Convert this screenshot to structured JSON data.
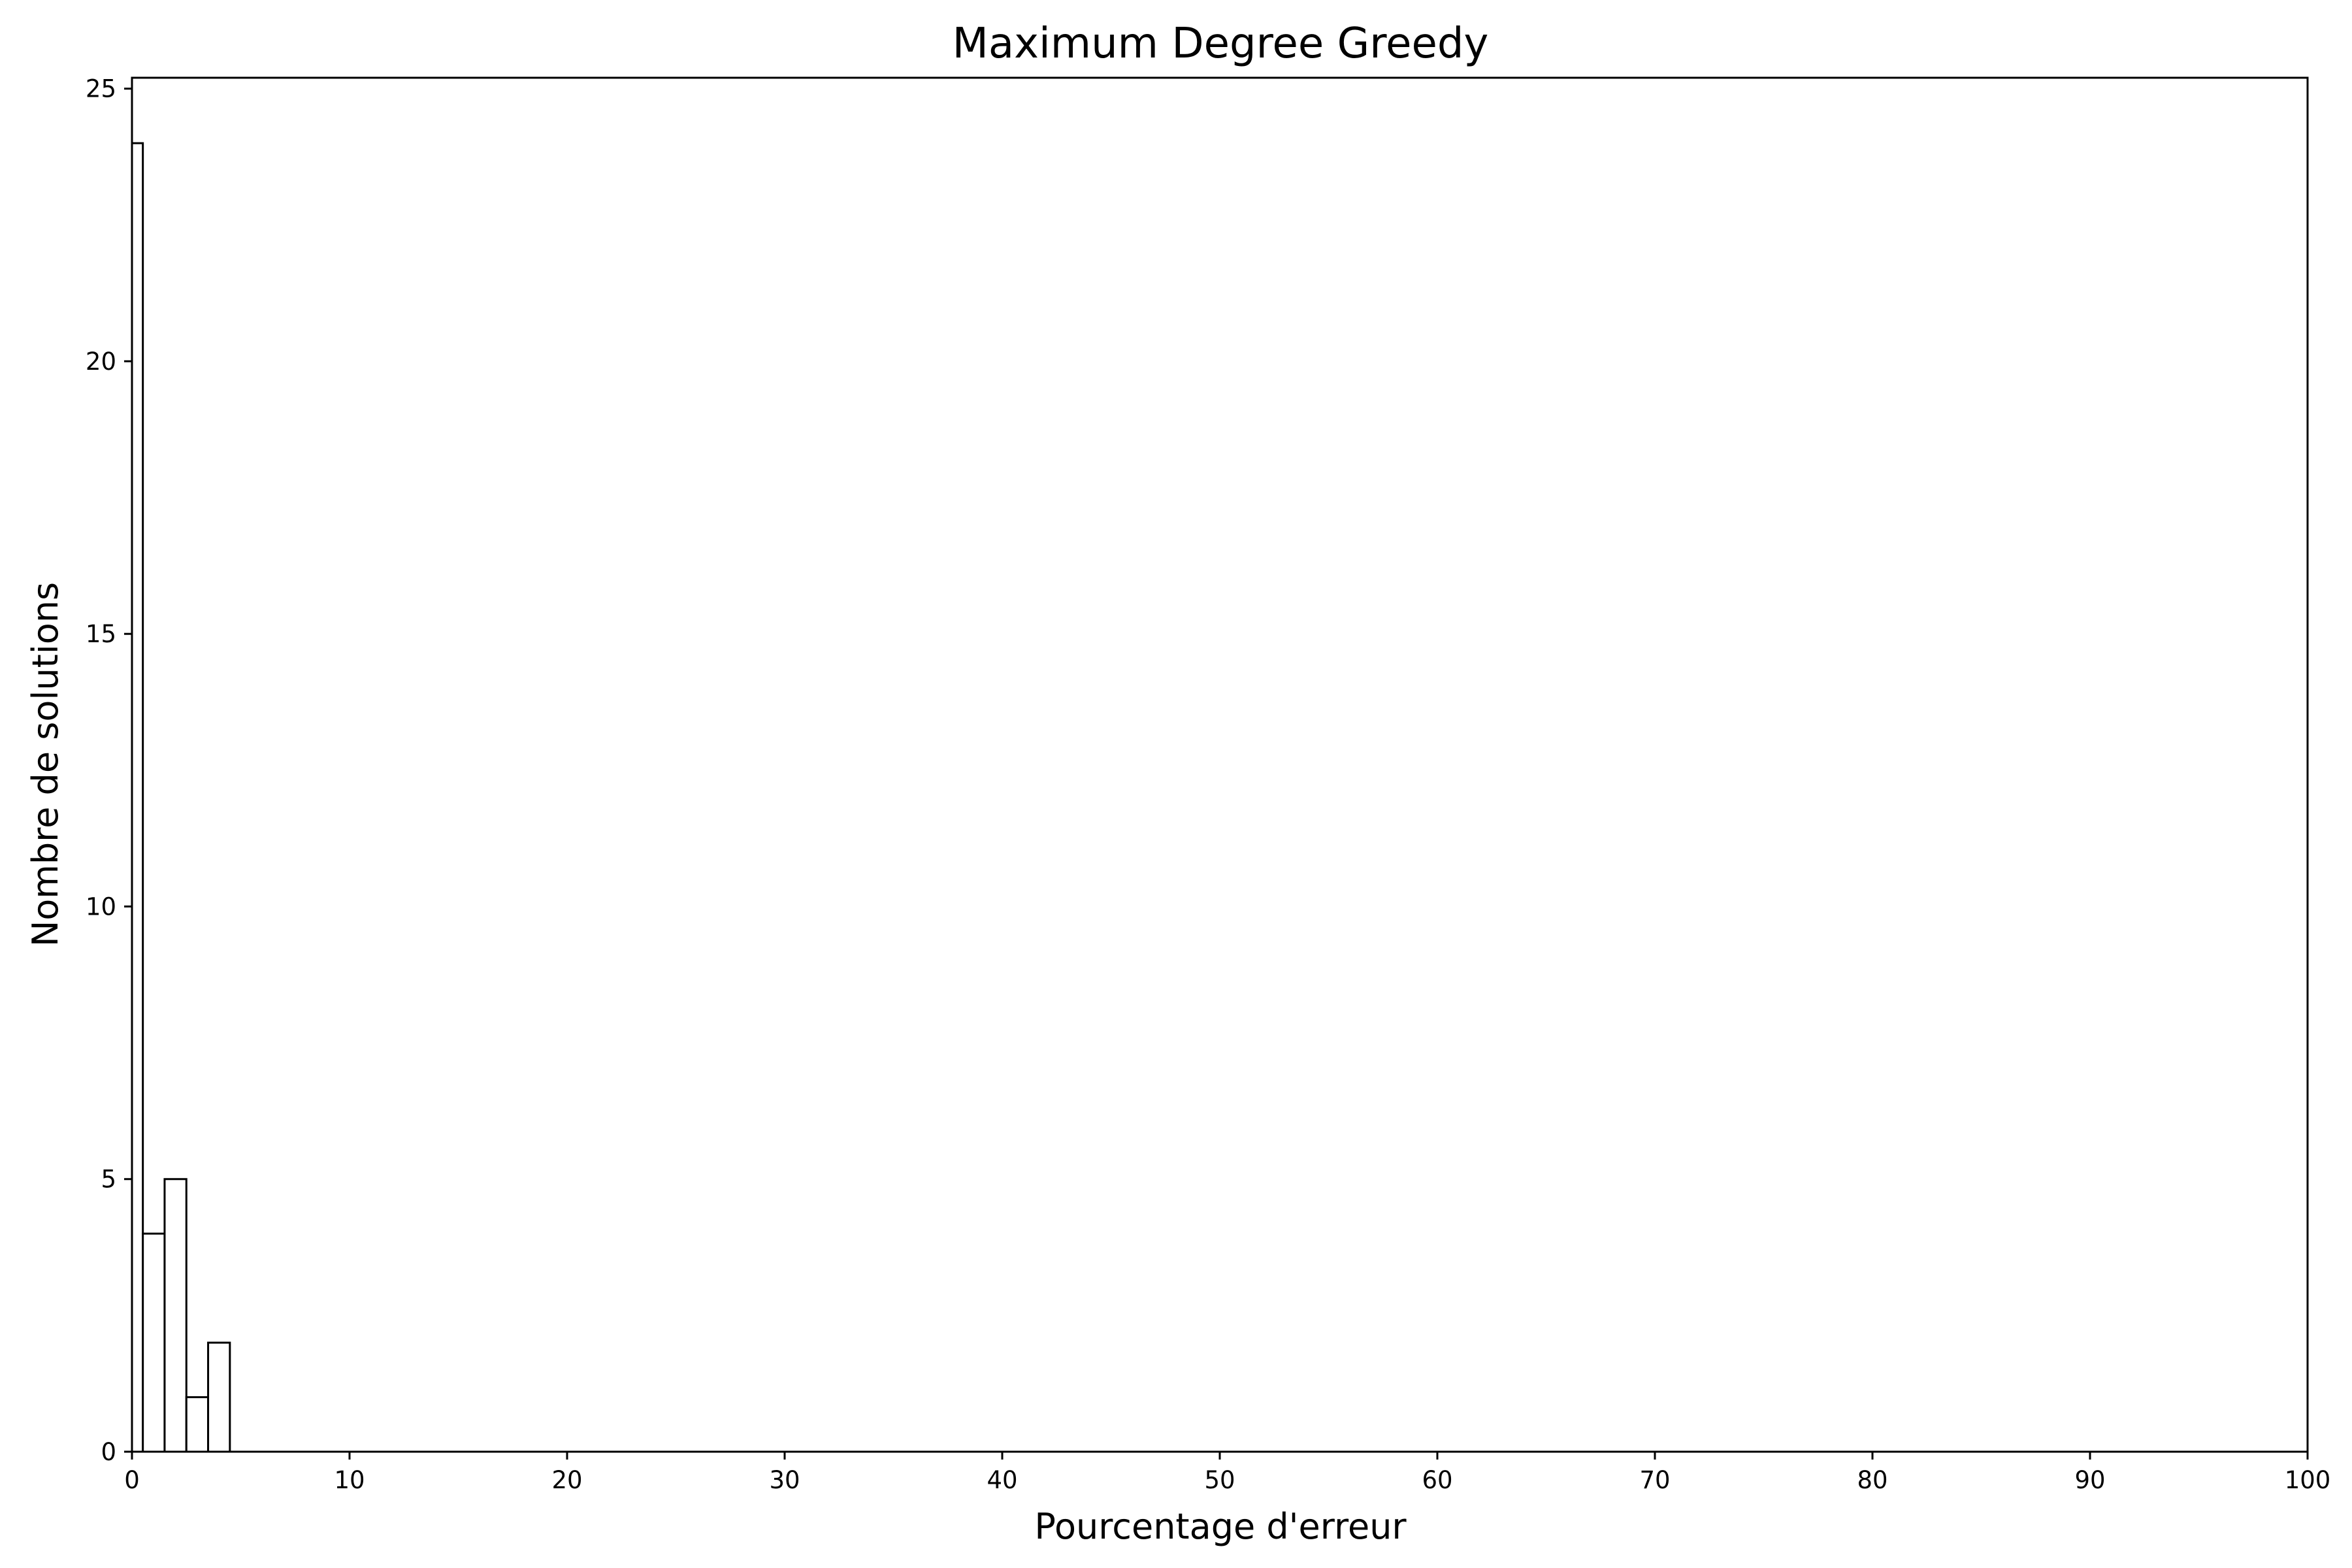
{
  "chart_data": {
    "type": "bar",
    "title": "Maximum Degree Greedy",
    "xlabel": "Pourcentage d'erreur",
    "ylabel": "Nombre de solutions",
    "xlim": [
      0,
      100
    ],
    "ylim": [
      0,
      25.2
    ],
    "xticks": [
      "0",
      "10",
      "20",
      "30",
      "40",
      "50",
      "60",
      "70",
      "80",
      "90",
      "100"
    ],
    "yticks": [
      "0",
      "5",
      "10",
      "15",
      "20",
      "25"
    ],
    "grid": false,
    "bins": [
      {
        "x0": 0.0,
        "x1": 0.5,
        "value": 24
      },
      {
        "x0": 0.5,
        "x1": 1.5,
        "value": 4
      },
      {
        "x0": 1.5,
        "x1": 2.5,
        "value": 5
      },
      {
        "x0": 2.5,
        "x1": 3.5,
        "value": 1
      },
      {
        "x0": 3.5,
        "x1": 4.5,
        "value": 2
      }
    ],
    "bar_fill": "#ffffff",
    "bar_edge": "#000000"
  }
}
